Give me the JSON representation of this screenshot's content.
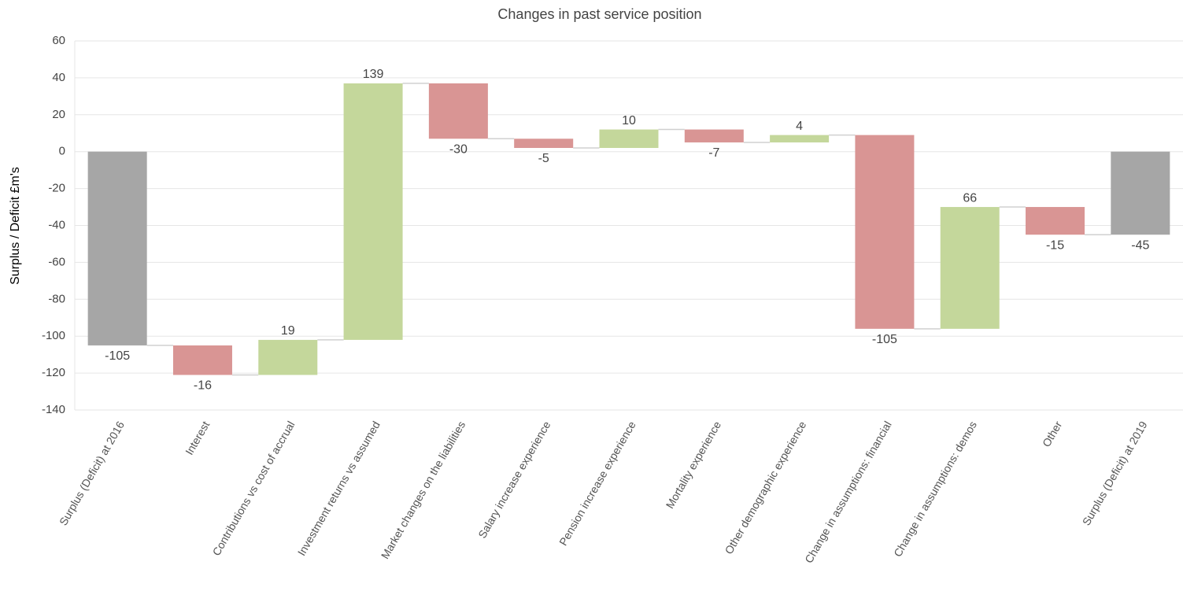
{
  "chart_data": {
    "type": "waterfall",
    "title": "Changes in past service position",
    "y_label": "Surplus / Deficit £m's",
    "categories": [
      "Surplus (Deficit) at 2016",
      "Interest",
      "Contributions vs cost of accrual",
      "Investment returns vs assumed",
      "Market changes on the liabilities",
      "Salary increase experience",
      "Pension increase experience",
      "Mortality experience",
      "Other demographic experience",
      "Change in assumptions: financial",
      "Change in assumptions: demos",
      "Other",
      "Surplus (Deficit) at 2019"
    ],
    "values": [
      -105,
      -16,
      19,
      139,
      -30,
      -5,
      10,
      -7,
      4,
      -105,
      66,
      -15,
      -45
    ],
    "total": [
      true,
      false,
      false,
      false,
      false,
      false,
      false,
      false,
      false,
      false,
      false,
      false,
      true
    ],
    "colors": {
      "increase": "#c4d79b",
      "decrease": "#d99594",
      "total": "#a6a6a6"
    },
    "ylim": [
      -140,
      60
    ],
    "yticks": [
      -140,
      -120,
      -100,
      -80,
      -60,
      -40,
      -20,
      0,
      20,
      40,
      60
    ],
    "grid": true
  }
}
